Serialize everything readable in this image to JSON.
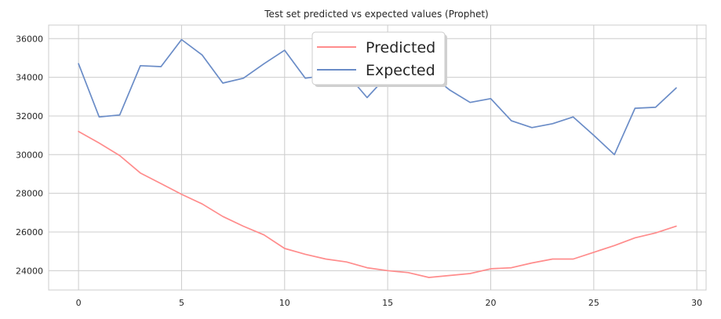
{
  "chart_data": {
    "type": "line",
    "title": "Test set predicted vs expected values (Prophet)",
    "xlabel": "",
    "ylabel": "",
    "xlim": [
      -1.45,
      30.45
    ],
    "ylim": [
      23000,
      36700
    ],
    "x_ticks": [
      0,
      5,
      10,
      15,
      20,
      25,
      30
    ],
    "y_ticks": [
      24000,
      26000,
      28000,
      30000,
      32000,
      34000,
      36000
    ],
    "grid": true,
    "legend_position": "top-center",
    "series": [
      {
        "name": "Predicted",
        "color": "#ff8c8c",
        "x": [
          0,
          1,
          2,
          3,
          4,
          5,
          6,
          7,
          8,
          9,
          10,
          11,
          12,
          13,
          14,
          15,
          16,
          17,
          18,
          19,
          20,
          21,
          22,
          23,
          24,
          25,
          26,
          27,
          28,
          29
        ],
        "values": [
          31200,
          30600,
          29950,
          29050,
          28500,
          27950,
          27450,
          26800,
          26300,
          25850,
          25150,
          24850,
          24600,
          24450,
          24150,
          24000,
          23900,
          23650,
          23750,
          23850,
          24100,
          24150,
          24400,
          24600,
          24600,
          24950,
          25300,
          25700,
          25950,
          26300
        ]
      },
      {
        "name": "Expected",
        "color": "#6a8cc7",
        "x": [
          0,
          1,
          2,
          3,
          4,
          5,
          6,
          7,
          8,
          9,
          10,
          11,
          12,
          13,
          14,
          15,
          16,
          17,
          18,
          19,
          20,
          21,
          22,
          23,
          24,
          25,
          26,
          27,
          28,
          29
        ],
        "values": [
          34700,
          31950,
          32050,
          34600,
          34550,
          35950,
          35150,
          33700,
          33950,
          34700,
          35400,
          33950,
          34100,
          34200,
          32950,
          34100,
          34150,
          34200,
          33350,
          32700,
          32900,
          31750,
          31400,
          31600,
          31950,
          31000,
          30000,
          32400,
          32450,
          33450
        ]
      }
    ]
  }
}
